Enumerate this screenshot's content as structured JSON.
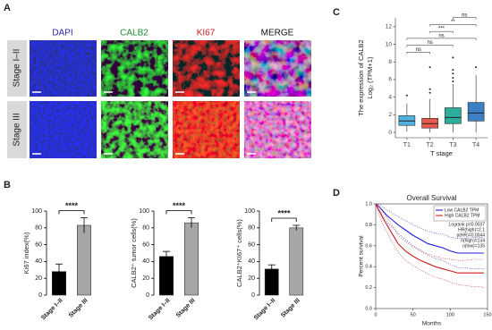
{
  "panel_labels": [
    "A",
    "B",
    "C",
    "D"
  ],
  "microscopy": {
    "channels": [
      "DAPI",
      "CALB2",
      "KI67",
      "MERGE"
    ],
    "rows": [
      "Stage I–II",
      "Stage III"
    ]
  },
  "chart_data": [
    {
      "type": "bar",
      "ylabel": "Ki67 index(%)",
      "categories": [
        "Stage I–II",
        "Stage III"
      ],
      "values": [
        28,
        83
      ],
      "errors": [
        9,
        9
      ],
      "colors": [
        "#000000",
        "#a6a6a6"
      ],
      "ylim": [
        0,
        100
      ],
      "yticks": [
        0,
        20,
        40,
        60,
        80,
        100
      ],
      "significance": "****"
    },
    {
      "type": "bar",
      "ylabel": "CALB2⁺ tumor cells(%)",
      "categories": [
        "Stage I–II",
        "Stage III"
      ],
      "values": [
        46,
        86
      ],
      "errors": [
        6,
        6
      ],
      "colors": [
        "#000000",
        "#a6a6a6"
      ],
      "ylim": [
        0,
        100
      ],
      "yticks": [
        0,
        20,
        40,
        60,
        80,
        100
      ],
      "significance": "****"
    },
    {
      "type": "bar",
      "ylabel": "CALB2⁺KI67⁺ cells(%)",
      "categories": [
        "Stage I–II",
        "Stage III"
      ],
      "values": [
        31,
        80
      ],
      "errors": [
        5,
        3
      ],
      "colors": [
        "#000000",
        "#a6a6a6"
      ],
      "ylim": [
        0,
        100
      ],
      "yticks": [
        0,
        20,
        40,
        60,
        80,
        100
      ],
      "significance": "****"
    },
    {
      "type": "box",
      "title": "The expression of CALB2",
      "ylabel": "Log₂ (TPM+1)",
      "xlabel": "T stage",
      "categories": [
        "T1",
        "T2",
        "T3",
        "T4"
      ],
      "min": [
        0.1,
        0,
        0,
        0
      ],
      "q1": [
        0.8,
        0.5,
        1.0,
        1.3
      ],
      "median": [
        1.3,
        1.0,
        1.7,
        2.2
      ],
      "q3": [
        1.9,
        1.6,
        2.8,
        3.4
      ],
      "max": [
        3.3,
        3.8,
        5.5,
        6.5
      ],
      "outliers": [
        [
          4.2
        ],
        [
          4.5,
          4.9,
          7.4
        ],
        [
          5.8,
          6.2,
          6.7,
          7.1,
          8.5
        ],
        [
          7.4
        ]
      ],
      "colors": [
        "#4fb3e0",
        "#e8594c",
        "#2bae9a",
        "#3b7fc4"
      ],
      "ylim": [
        -0.6,
        13
      ],
      "yticks": [
        0,
        2,
        4,
        6,
        8,
        10,
        12
      ],
      "comparisons": [
        {
          "pair": [
            "T1",
            "T2"
          ],
          "label": "ns"
        },
        {
          "pair": [
            "T1",
            "T3"
          ],
          "label": "ns"
        },
        {
          "pair": [
            "T1",
            "T4"
          ],
          "label": "ns"
        },
        {
          "pair": [
            "T2",
            "T3"
          ],
          "label": "***"
        },
        {
          "pair": [
            "T2",
            "T4"
          ],
          "label": "**"
        },
        {
          "pair": [
            "T3",
            "T4"
          ],
          "label": "ns"
        }
      ]
    },
    {
      "type": "line",
      "title": "Overall Survival",
      "xlabel": "Months",
      "ylabel": "Percent survival",
      "legend": "upper right",
      "xlim": [
        0,
        150
      ],
      "xticks": [
        0,
        50,
        100,
        150
      ],
      "ylim": [
        0,
        1
      ],
      "yticks": [
        {
          "value": 0,
          "label": "0.0"
        },
        0.2,
        0.4,
        0.6,
        0.8,
        {
          "value": 1,
          "label": "1.0"
        }
      ],
      "series": [
        {
          "name": "Low CALB2 TPM",
          "color": "#1f1fd6",
          "x": [
            0,
            5,
            10,
            15,
            20,
            25,
            30,
            40,
            50,
            60,
            70,
            80,
            90,
            100,
            110,
            120,
            130,
            140,
            145
          ],
          "values": [
            1,
            0.97,
            0.93,
            0.89,
            0.86,
            0.83,
            0.8,
            0.75,
            0.7,
            0.66,
            0.62,
            0.6,
            0.58,
            0.55,
            0.53,
            0.53,
            0.53,
            0.53,
            0.53
          ],
          "lower": [
            1,
            0.94,
            0.88,
            0.83,
            0.79,
            0.76,
            0.72,
            0.66,
            0.6,
            0.56,
            0.51,
            0.48,
            0.46,
            0.42,
            0.39,
            0.39,
            0.38,
            0.38,
            0.38
          ],
          "upper": [
            1,
            0.99,
            0.97,
            0.94,
            0.92,
            0.9,
            0.88,
            0.84,
            0.8,
            0.77,
            0.74,
            0.72,
            0.71,
            0.68,
            0.67,
            0.67,
            0.68,
            0.68,
            0.68
          ]
        },
        {
          "name": "High CALB2 TPM",
          "color": "#c81e1e",
          "x": [
            0,
            5,
            10,
            15,
            20,
            25,
            30,
            40,
            50,
            60,
            70,
            80,
            90,
            100,
            110,
            120,
            130,
            140,
            145
          ],
          "values": [
            1,
            0.93,
            0.86,
            0.8,
            0.74,
            0.68,
            0.62,
            0.55,
            0.5,
            0.46,
            0.43,
            0.4,
            0.38,
            0.36,
            0.34,
            0.34,
            0.34,
            0.34,
            0.34
          ],
          "lower": [
            1,
            0.89,
            0.8,
            0.73,
            0.66,
            0.6,
            0.54,
            0.46,
            0.41,
            0.37,
            0.33,
            0.3,
            0.28,
            0.25,
            0.23,
            0.22,
            0.21,
            0.21,
            0.2
          ],
          "upper": [
            1,
            0.97,
            0.92,
            0.87,
            0.82,
            0.76,
            0.7,
            0.64,
            0.59,
            0.55,
            0.52,
            0.5,
            0.48,
            0.47,
            0.46,
            0.46,
            0.47,
            0.47,
            0.47
          ]
        }
      ],
      "annotations": [
        "Logrank p=0.0037",
        "HR(high)=2.1",
        "p(HR)=0.0044",
        "n(high)=134",
        "n(low)=135"
      ]
    }
  ]
}
